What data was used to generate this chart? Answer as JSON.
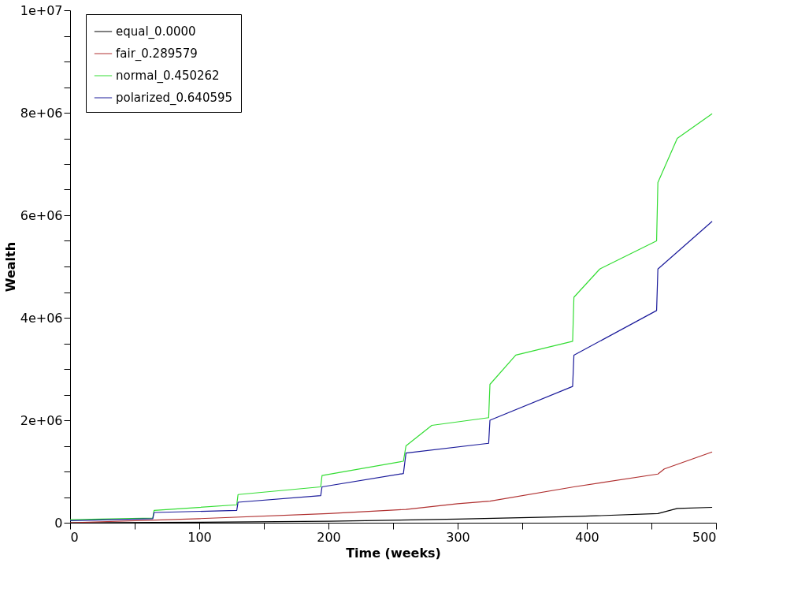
{
  "chart_data": {
    "type": "line",
    "xlabel": "Time (weeks)",
    "ylabel": "Wealth",
    "xlim": [
      0,
      500
    ],
    "ylim": [
      0,
      10000000
    ],
    "xticks": [
      0,
      {
        "value": 50,
        "label": null
      },
      100,
      {
        "value": 150,
        "label": null
      },
      200,
      {
        "value": 250,
        "label": null
      },
      300,
      {
        "value": 350,
        "label": null
      },
      400,
      {
        "value": 450,
        "label": null
      },
      500
    ],
    "yticks": [
      0,
      {
        "value": 500000,
        "label": null
      },
      {
        "value": 1000000,
        "label": null
      },
      {
        "value": 1500000,
        "label": null
      },
      {
        "value": 2000000,
        "label": "2e+06"
      },
      {
        "value": 2500000,
        "label": null
      },
      {
        "value": 3000000,
        "label": null
      },
      {
        "value": 3500000,
        "label": null
      },
      {
        "value": 4000000,
        "label": "4e+06"
      },
      {
        "value": 4500000,
        "label": null
      },
      {
        "value": 5000000,
        "label": null
      },
      {
        "value": 5500000,
        "label": null
      },
      {
        "value": 6000000,
        "label": "6e+06"
      },
      {
        "value": 6500000,
        "label": null
      },
      {
        "value": 7000000,
        "label": null
      },
      {
        "value": 7500000,
        "label": null
      },
      {
        "value": 8000000,
        "label": "8e+06"
      },
      {
        "value": 8500000,
        "label": null
      },
      {
        "value": 9000000,
        "label": null
      },
      {
        "value": 9500000,
        "label": null
      },
      {
        "value": 10000000,
        "label": "1e+07"
      }
    ],
    "grid": false,
    "legend": "top left",
    "marker": "none",
    "line_style": "solid",
    "series": [
      {
        "name": "equal_0.0000",
        "color": "#000000",
        "x": [
          0,
          100,
          200,
          300,
          390,
          455,
          470,
          497
        ],
        "values": [
          0,
          10000,
          30000,
          70000,
          120000,
          180000,
          280000,
          300000
        ]
      },
      {
        "name": "fair_0.289579",
        "color": "#b03030",
        "x": [
          0,
          100,
          200,
          260,
          300,
          325,
          390,
          455,
          460,
          497
        ],
        "values": [
          0,
          80000,
          180000,
          260000,
          370000,
          420000,
          700000,
          950000,
          1050000,
          1380000
        ]
      },
      {
        "name": "normal_0.450262",
        "color": "#33dd33",
        "x": [
          0,
          64,
          65,
          129,
          130,
          194,
          195,
          258,
          260,
          280,
          324,
          325,
          345,
          389,
          390,
          410,
          454,
          455,
          470,
          497
        ],
        "values": [
          60000,
          90000,
          240000,
          350000,
          550000,
          700000,
          920000,
          1200000,
          1500000,
          1900000,
          2050000,
          2700000,
          3270000,
          3540000,
          4400000,
          4950000,
          5500000,
          6640000,
          7500000,
          7980000
        ]
      },
      {
        "name": "polarized_0.640595",
        "color": "#1a1a9a",
        "x": [
          0,
          64,
          65,
          129,
          130,
          194,
          195,
          258,
          260,
          324,
          325,
          389,
          390,
          454,
          455,
          497
        ],
        "values": [
          40000,
          80000,
          200000,
          240000,
          400000,
          530000,
          700000,
          960000,
          1360000,
          1550000,
          2000000,
          2660000,
          3270000,
          4140000,
          4950000,
          5880000
        ]
      }
    ]
  }
}
